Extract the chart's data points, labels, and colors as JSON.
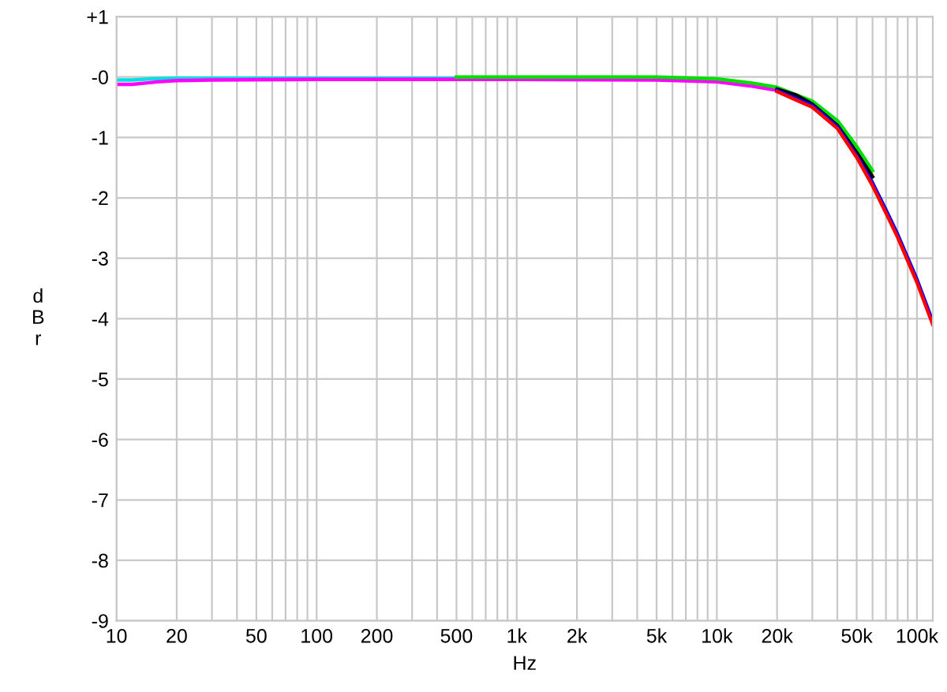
{
  "chart_data": {
    "type": "line",
    "xlabel": "Hz",
    "ylabel": "dBr",
    "log": "x",
    "grid": true,
    "marker": "none",
    "line_style": "solid",
    "xlim": [
      10,
      120000
    ],
    "ylim": [
      -9,
      1
    ],
    "xticks": [
      10,
      20,
      {
        "value": 30,
        "label": null
      },
      {
        "value": 40,
        "label": null
      },
      50,
      {
        "value": 60,
        "label": null
      },
      {
        "value": 70,
        "label": null
      },
      {
        "value": 80,
        "label": null
      },
      {
        "value": 90,
        "label": null
      },
      100,
      200,
      {
        "value": 300,
        "label": null
      },
      {
        "value": 400,
        "label": null
      },
      500,
      {
        "value": 600,
        "label": null
      },
      {
        "value": 700,
        "label": null
      },
      {
        "value": 800,
        "label": null
      },
      {
        "value": 900,
        "label": null
      },
      {
        "value": 1000,
        "label": "1k"
      },
      {
        "value": 2000,
        "label": "2k"
      },
      {
        "value": 3000,
        "label": null
      },
      {
        "value": 4000,
        "label": null
      },
      {
        "value": 5000,
        "label": "5k"
      },
      {
        "value": 6000,
        "label": null
      },
      {
        "value": 7000,
        "label": null
      },
      {
        "value": 8000,
        "label": null
      },
      {
        "value": 9000,
        "label": null
      },
      {
        "value": 10000,
        "label": "10k"
      },
      {
        "value": 20000,
        "label": "20k"
      },
      {
        "value": 30000,
        "label": null
      },
      {
        "value": 40000,
        "label": null
      },
      {
        "value": 50000,
        "label": "50k"
      },
      {
        "value": 60000,
        "label": null
      },
      {
        "value": 70000,
        "label": null
      },
      {
        "value": 80000,
        "label": null
      },
      {
        "value": 90000,
        "label": null
      },
      {
        "value": 100000,
        "label": "100k"
      }
    ],
    "yticks": [
      {
        "value": 1,
        "label": "+1"
      },
      {
        "value": 0,
        "label": "-0"
      },
      -1,
      -2,
      -3,
      -4,
      -5,
      -6,
      -7,
      -8,
      -9
    ],
    "series": [
      {
        "color": "#00e0e0",
        "x": [
          10,
          12,
          15,
          20,
          50,
          100,
          1000,
          5000,
          10000
        ],
        "values": [
          -0.05,
          -0.05,
          -0.03,
          -0.02,
          -0.02,
          -0.02,
          -0.02,
          -0.02,
          -0.05
        ]
      },
      {
        "color": "#ff00ff",
        "x": [
          10,
          12,
          14,
          16,
          20,
          30,
          100,
          1000,
          5000,
          10000,
          15000,
          20000
        ],
        "values": [
          -0.12,
          -0.12,
          -0.1,
          -0.08,
          -0.06,
          -0.05,
          -0.04,
          -0.04,
          -0.05,
          -0.08,
          -0.15,
          -0.22
        ]
      },
      {
        "color": "#00e000",
        "x": [
          500,
          1000,
          5000,
          10000,
          15000,
          20000,
          30000,
          40000,
          50000,
          60000
        ],
        "values": [
          0.0,
          0.0,
          0.0,
          -0.03,
          -0.1,
          -0.17,
          -0.4,
          -0.72,
          -1.15,
          -1.55
        ]
      },
      {
        "color": "#000000",
        "x": [
          20000,
          25000,
          30000,
          40000,
          50000,
          60000
        ],
        "values": [
          -0.2,
          -0.3,
          -0.45,
          -0.8,
          -1.25,
          -1.65
        ]
      },
      {
        "color": "#0000ff",
        "x": [
          20000,
          30000,
          40000,
          50000,
          60000,
          70000,
          80000,
          100000,
          120000
        ],
        "values": [
          -0.22,
          -0.47,
          -0.82,
          -1.3,
          -1.75,
          -2.2,
          -2.6,
          -3.35,
          -4.05
        ]
      },
      {
        "color": "#ff0000",
        "x": [
          20000,
          30000,
          40000,
          50000,
          60000,
          70000,
          80000,
          100000,
          120000
        ],
        "values": [
          -0.24,
          -0.5,
          -0.85,
          -1.33,
          -1.8,
          -2.25,
          -2.65,
          -3.4,
          -4.1
        ]
      }
    ]
  }
}
